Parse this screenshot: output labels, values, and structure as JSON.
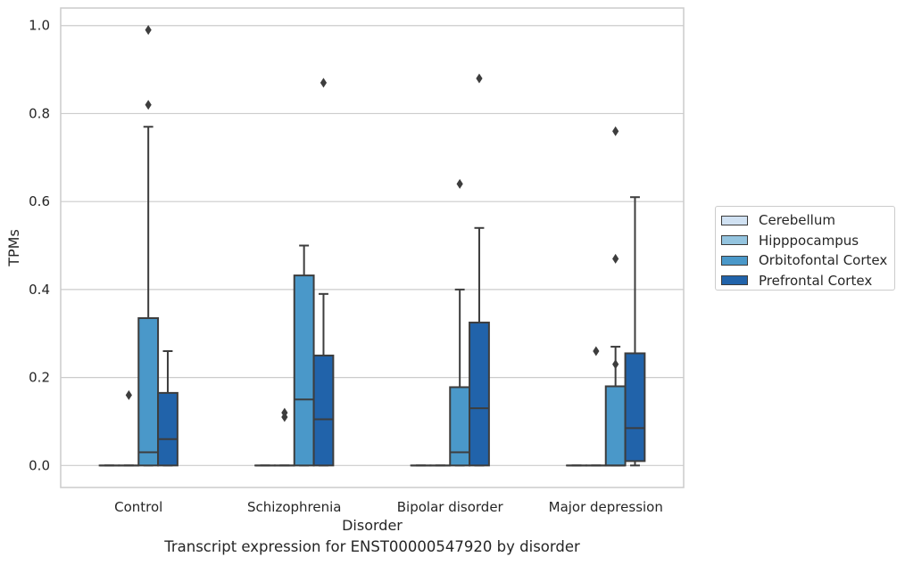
{
  "caption": "Transcript expression for ENST00000547920 by disorder",
  "chart_data": {
    "type": "box",
    "title": "",
    "xlabel": "Disorder",
    "ylabel": "TPMs",
    "ylim": [
      -0.05,
      1.04
    ],
    "yticks": [
      "0.0",
      "0.2",
      "0.4",
      "0.6",
      "0.8",
      "1.0"
    ],
    "grid": "horizontal",
    "legend_position": "right",
    "categories": [
      "Control",
      "Schizophrenia",
      "Bipolar disorder",
      "Major depression"
    ],
    "series": [
      {
        "name": "Cerebellum",
        "color": "#d0e1f2",
        "boxes": [
          {
            "q1": 0,
            "median": 0,
            "q3": 0,
            "whisker_low": 0,
            "whisker_high": 0,
            "outliers": []
          },
          {
            "q1": 0,
            "median": 0,
            "q3": 0,
            "whisker_low": 0,
            "whisker_high": 0,
            "outliers": []
          },
          {
            "q1": 0,
            "median": 0,
            "q3": 0,
            "whisker_low": 0,
            "whisker_high": 0,
            "outliers": []
          },
          {
            "q1": 0,
            "median": 0,
            "q3": 0,
            "whisker_low": 0,
            "whisker_high": 0,
            "outliers": []
          }
        ]
      },
      {
        "name": "Hipppocampus",
        "color": "#94c4df",
        "boxes": [
          {
            "q1": 0,
            "median": 0,
            "q3": 0,
            "whisker_low": 0,
            "whisker_high": 0,
            "outliers": [
              0.16
            ]
          },
          {
            "q1": 0,
            "median": 0,
            "q3": 0,
            "whisker_low": 0,
            "whisker_high": 0,
            "outliers": [
              0.11,
              0.12
            ]
          },
          {
            "q1": 0,
            "median": 0,
            "q3": 0,
            "whisker_low": 0,
            "whisker_high": 0,
            "outliers": []
          },
          {
            "q1": 0,
            "median": 0,
            "q3": 0,
            "whisker_low": 0,
            "whisker_high": 0,
            "outliers": [
              0.26
            ]
          }
        ]
      },
      {
        "name": "Orbitofontal Cortex",
        "color": "#4a98c9",
        "boxes": [
          {
            "q1": 0,
            "median": 0.03,
            "q3": 0.335,
            "whisker_low": 0,
            "whisker_high": 0.77,
            "outliers": [
              0.82,
              0.99
            ]
          },
          {
            "q1": 0,
            "median": 0.15,
            "q3": 0.432,
            "whisker_low": 0,
            "whisker_high": 0.5,
            "outliers": []
          },
          {
            "q1": 0,
            "median": 0.03,
            "q3": 0.178,
            "whisker_low": 0,
            "whisker_high": 0.4,
            "outliers": [
              0.64
            ]
          },
          {
            "q1": 0,
            "median": 0,
            "q3": 0.18,
            "whisker_low": 0,
            "whisker_high": 0.27,
            "outliers": [
              0.23,
              0.47,
              0.76
            ]
          }
        ]
      },
      {
        "name": "Prefrontal Cortex",
        "color": "#2163aa",
        "boxes": [
          {
            "q1": 0,
            "median": 0.06,
            "q3": 0.165,
            "whisker_low": 0,
            "whisker_high": 0.26,
            "outliers": []
          },
          {
            "q1": 0,
            "median": 0.105,
            "q3": 0.25,
            "whisker_low": 0,
            "whisker_high": 0.39,
            "outliers": [
              0.87
            ]
          },
          {
            "q1": 0,
            "median": 0.13,
            "q3": 0.325,
            "whisker_low": 0,
            "whisker_high": 0.54,
            "outliers": [
              0.88
            ]
          },
          {
            "q1": 0.01,
            "median": 0.085,
            "q3": 0.255,
            "whisker_low": 0,
            "whisker_high": 0.61,
            "outliers": []
          }
        ]
      }
    ]
  }
}
